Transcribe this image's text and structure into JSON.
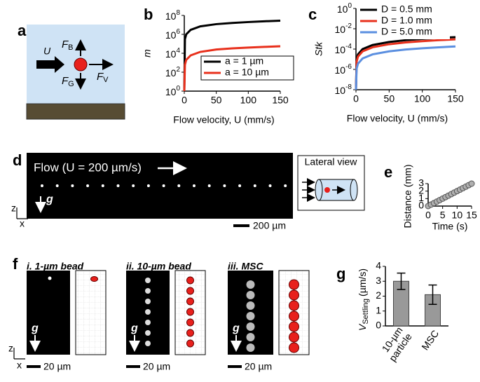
{
  "panel_labels": [
    "a",
    "b",
    "c",
    "d",
    "e",
    "f",
    "g"
  ],
  "panel_a": {
    "velocity": "U",
    "forces": [
      {
        "main": "F",
        "sub": "B"
      },
      {
        "main": "F",
        "sub": "G"
      },
      {
        "main": "F",
        "sub": "V"
      }
    ]
  },
  "panel_d": {
    "flow_label": "Flow (U = 200 µm/s)",
    "gravity": "g",
    "axes": [
      "z",
      "x"
    ],
    "scale_bar": "200 µm",
    "lateral_view": "Lateral view"
  },
  "panel_f": {
    "images": [
      {
        "label": "i. 1-µm bead",
        "scale_bar": "20 µm"
      },
      {
        "label": "ii. 10-µm bead",
        "scale_bar": "20 µm"
      },
      {
        "label": "iii. MSC",
        "scale_bar": "20 µm"
      }
    ],
    "gravity": "g",
    "axes": [
      "z",
      "x"
    ]
  },
  "chart_data": [
    {
      "type": "line",
      "xlabel": "Flow velocity, U (mm/s)",
      "ylabel": "m",
      "log_y": true,
      "legend": "lower right",
      "x": [
        0,
        1,
        3,
        10,
        25,
        50,
        75,
        100,
        125,
        150
      ],
      "series": [
        {
          "name": "a = 1 µm",
          "color": "#000000",
          "values": [
            1,
            300000,
            1000000,
            3000000,
            7000000,
            12000000,
            16000000,
            20000000,
            24000000,
            28000000
          ]
        },
        {
          "name": "a = 10 µm",
          "color": "#e8301c",
          "values": [
            1,
            600,
            2000,
            6000,
            14000,
            25000,
            33000,
            40000,
            47000,
            55000
          ]
        }
      ],
      "xlim": [
        0,
        150
      ],
      "xticks": [
        0,
        50,
        100,
        150
      ],
      "ylim": [
        1,
        100000000
      ],
      "yticks": [
        {
          "value": 1,
          "label": "10^0"
        },
        {
          "value": 100,
          "label": "10^2"
        },
        {
          "value": 10000,
          "label": "10^4"
        },
        {
          "value": 1000000,
          "label": "10^6"
        },
        {
          "value": 100000000,
          "label": "10^8"
        }
      ]
    },
    {
      "type": "line",
      "xlabel": "Flow velocity, U (mm/s)",
      "ylabel": "Stk",
      "log_y": true,
      "legend": "upper left",
      "x": [
        0,
        1,
        3,
        10,
        25,
        50,
        75,
        100,
        125,
        150
      ],
      "series": [
        {
          "name": "D = 0.5 mm",
          "color": "#000000",
          "values": [
            1e-08,
            1e-05,
            3e-05,
            0.0001,
            0.00025,
            0.0005,
            0.00075,
            0.001,
            0.00125,
            0.0015
          ]
        },
        {
          "name": "D = 1.0 mm",
          "color": "#e8301c",
          "values": [
            1e-08,
            6e-06,
            1.8e-05,
            6e-05,
            0.00015,
            0.0003,
            0.00045,
            0.0006,
            0.00075,
            0.0009
          ]
        },
        {
          "name": "D = 5.0 mm",
          "color": "#5b8fe0",
          "values": [
            1e-08,
            1.2e-06,
            3.6e-06,
            1.2e-05,
            3e-05,
            6e-05,
            9e-05,
            0.00012,
            0.00015,
            0.00018
          ]
        }
      ],
      "xlim": [
        0,
        150
      ],
      "xticks": [
        0,
        50,
        100,
        150
      ],
      "ylim": [
        1e-08,
        1
      ],
      "yticks": [
        {
          "value": 1,
          "label": "10^0"
        },
        {
          "value": 0.01,
          "label": "10^-2"
        },
        {
          "value": 0.0001,
          "label": "10^-4"
        },
        {
          "value": 1e-06,
          "label": "10^-6"
        },
        {
          "value": 1e-08,
          "label": "10^-8"
        }
      ]
    },
    {
      "type": "scatter",
      "xlabel": "Time (s)",
      "ylabel": "Distance (mm)",
      "color": "#b0b0b0",
      "x": [
        0,
        1,
        2,
        3,
        4,
        5,
        6,
        7,
        8,
        9,
        10,
        11,
        12,
        13,
        14,
        15
      ],
      "values": [
        0,
        0.2,
        0.4,
        0.6,
        0.8,
        1.0,
        1.2,
        1.4,
        1.6,
        1.8,
        2.0,
        2.2,
        2.4,
        2.6,
        2.8,
        3.0
      ],
      "xlim": [
        0,
        15
      ],
      "xticks": [
        0,
        5,
        10,
        15
      ],
      "ylim": [
        0,
        3
      ],
      "yticks": [
        0,
        1,
        2,
        3
      ]
    },
    {
      "type": "bar",
      "ylabel": "V",
      "ylabel_subscript": "Settling",
      "ylabel_unit": "(µm/s)",
      "color": "#999999",
      "categories": [
        "10-µm particle",
        "MSC"
      ],
      "values": [
        3.0,
        2.1
      ],
      "errors": [
        0.55,
        0.65
      ],
      "ylim": [
        0,
        4
      ],
      "yticks": [
        0,
        1,
        2,
        3,
        4
      ]
    }
  ]
}
